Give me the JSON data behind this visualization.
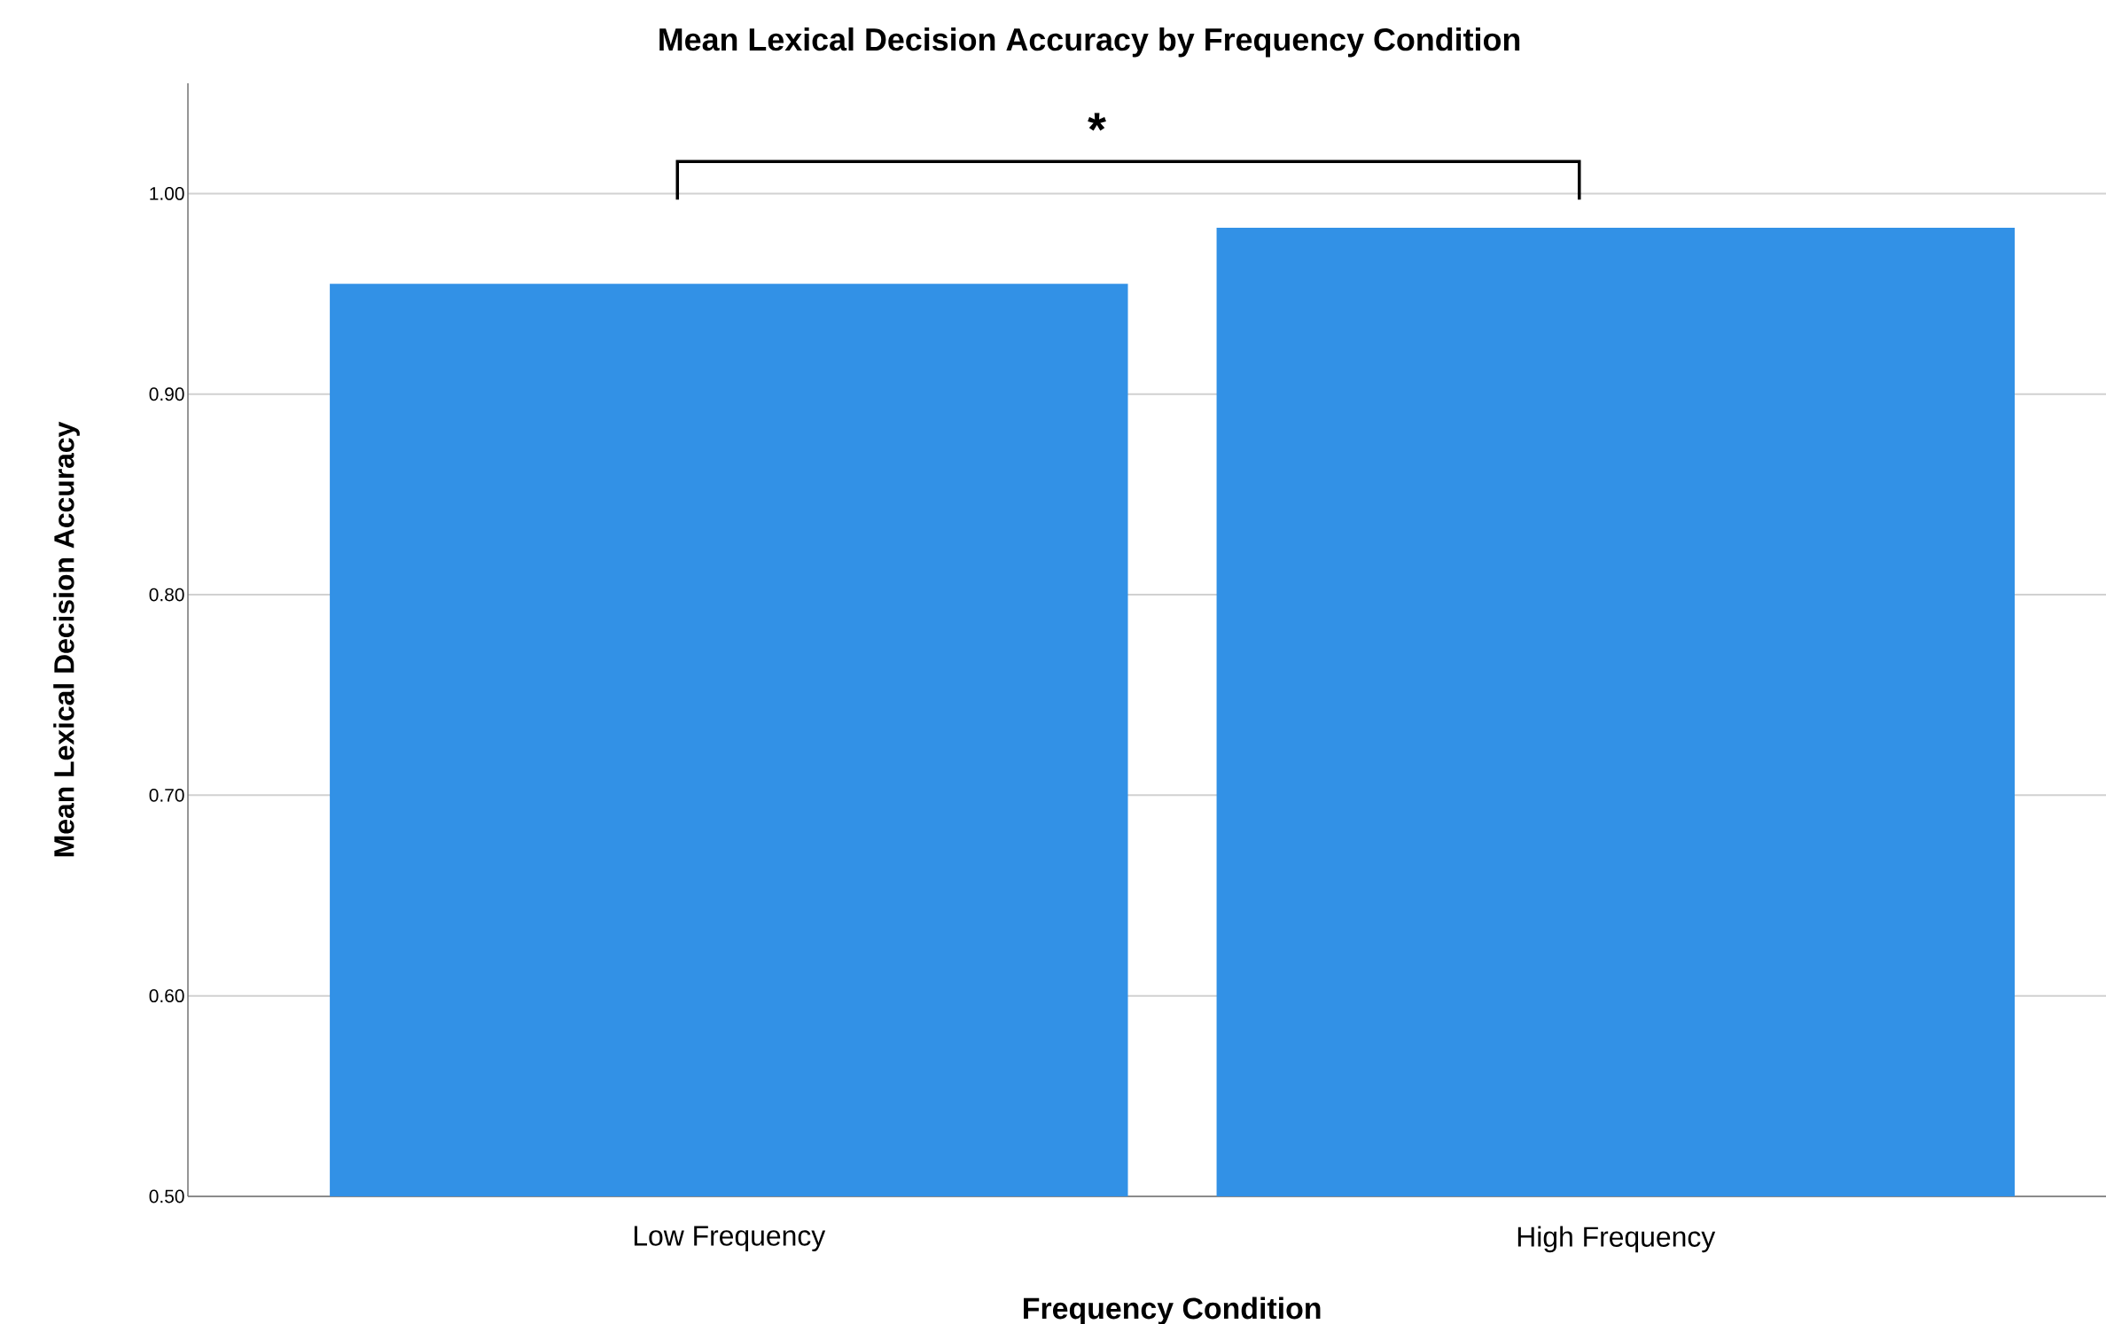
{
  "chart_data": {
    "type": "bar",
    "title": "Mean Lexical Decision Accuracy by Frequency Condition",
    "xlabel": "Frequency Condition",
    "ylabel": "Mean Lexical Decision Accuracy",
    "categories": [
      "Low Frequency",
      "High Frequency"
    ],
    "values": [
      0.955,
      0.983
    ],
    "color": "#3291e6",
    "ylim": [
      0.5,
      1.055
    ],
    "yticks": [
      {
        "value": 0.5,
        "label": "0.50"
      },
      {
        "value": 0.6,
        "label": "0.60"
      },
      {
        "value": 0.7,
        "label": "0.70"
      },
      {
        "value": 0.8,
        "label": "0.80"
      },
      {
        "value": 0.9,
        "label": "0.90"
      },
      {
        "value": 1.0,
        "label": "1.00"
      }
    ],
    "grid": "y",
    "annotations": [
      "*"
    ]
  }
}
